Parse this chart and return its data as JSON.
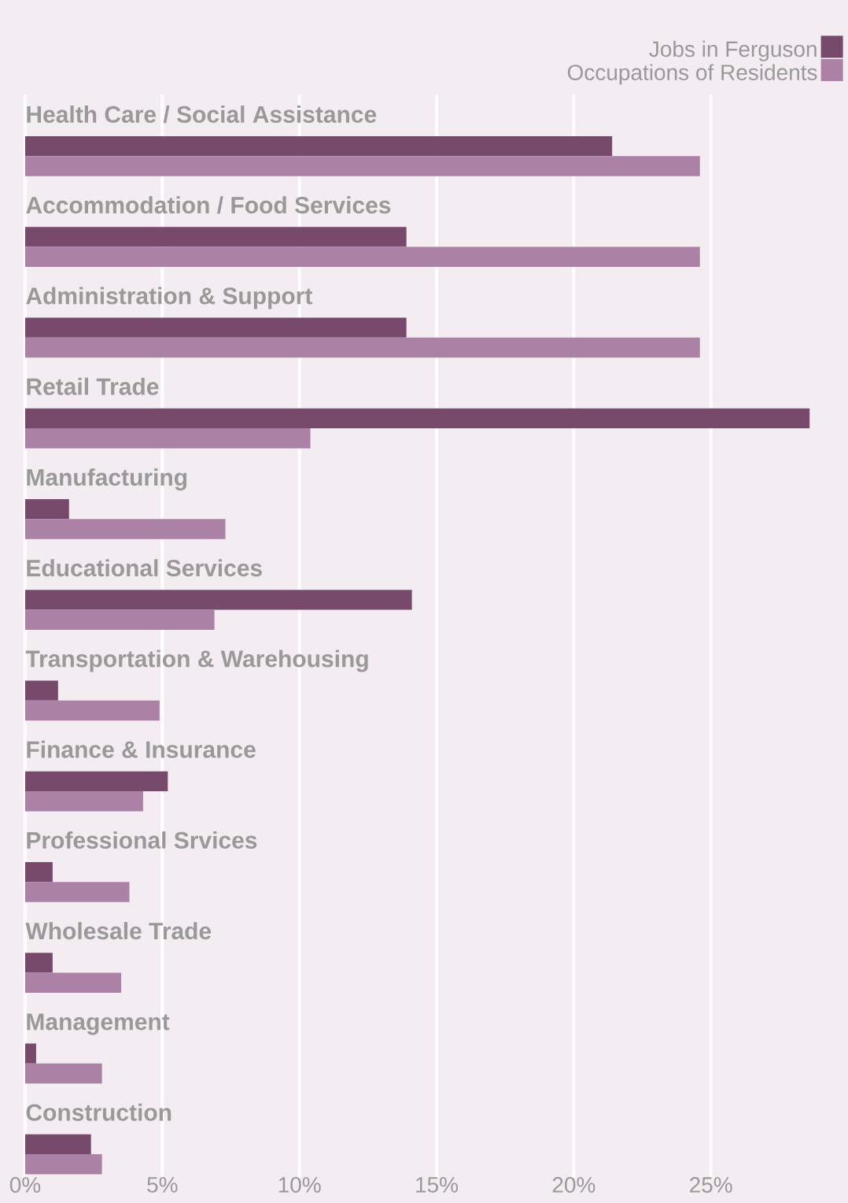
{
  "chart_data": {
    "type": "bar",
    "orientation": "horizontal",
    "categories": [
      "Health Care / Social Assistance",
      "Accommodation / Food Services",
      "Administration & Support",
      "Retail Trade",
      "Manufacturing",
      "Educational Services",
      "Transportation & Warehousing",
      "Finance & Insurance",
      "Professional Srvices",
      "Wholesale Trade",
      "Management",
      "Construction"
    ],
    "series": [
      {
        "name": "Jobs in Ferguson",
        "color": "#774a6b",
        "values": [
          21.4,
          13.9,
          13.9,
          28.6,
          1.6,
          14.1,
          1.2,
          5.2,
          1.0,
          1.0,
          0.4,
          2.4
        ]
      },
      {
        "name": "Occupations of Residents",
        "color": "#ab82a6",
        "values": [
          24.6,
          24.6,
          24.6,
          10.4,
          7.3,
          6.9,
          4.9,
          4.3,
          3.8,
          3.5,
          2.8,
          2.8
        ]
      }
    ],
    "xlim": [
      0,
      30
    ],
    "xticks": [
      {
        "value": 0,
        "label": "0%"
      },
      {
        "value": 5,
        "label": "5%"
      },
      {
        "value": 10,
        "label": "10%"
      },
      {
        "value": 15,
        "label": "15%"
      },
      {
        "value": 20,
        "label": "20%"
      },
      {
        "value": 25,
        "label": "25%"
      }
    ],
    "grid": "x",
    "legend": "top right"
  }
}
